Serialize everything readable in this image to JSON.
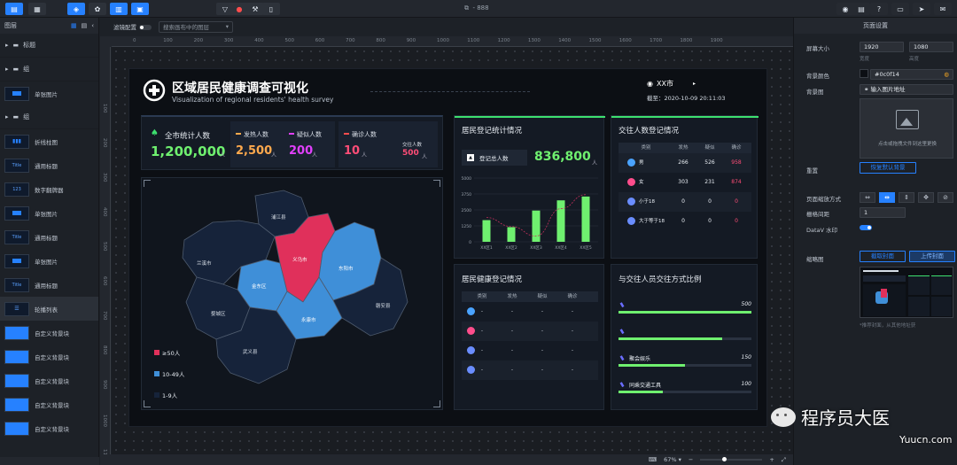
{
  "app": {
    "title": "- 888"
  },
  "left_panel": {
    "title": "图层",
    "groups": [
      {
        "label": "标题"
      },
      {
        "label": "组"
      },
      {
        "label": "组"
      }
    ],
    "layers": [
      {
        "label": "单张图片"
      },
      {
        "label": "折线柱图"
      },
      {
        "label": "通用标题"
      },
      {
        "label": "数字翻牌器"
      },
      {
        "label": "单张图片"
      },
      {
        "label": "通用标题"
      },
      {
        "label": "单张图片"
      },
      {
        "label": "通用标题"
      },
      {
        "label": "轮播列表"
      },
      {
        "label": "自定义背景块"
      },
      {
        "label": "自定义背景块"
      },
      {
        "label": "自定义背景块"
      },
      {
        "label": "自定义背景块"
      },
      {
        "label": "自定义背景块"
      }
    ]
  },
  "canvas_toolbar": {
    "filter_label": "滤镜配置",
    "search_placeholder": "搜索画布中的图层"
  },
  "ruler": {
    "h": [
      "0",
      "100",
      "200",
      "300",
      "400",
      "500",
      "600",
      "700",
      "800",
      "900",
      "1000",
      "1100",
      "1200",
      "1300",
      "1400",
      "1500",
      "1600",
      "1700",
      "1800",
      "1900"
    ],
    "v": [
      "100",
      "200",
      "300",
      "400",
      "500",
      "600",
      "700",
      "800",
      "900",
      "1000",
      "1100"
    ]
  },
  "zoom": "67%",
  "right_panel": {
    "title": "页面设置",
    "screen_size_label": "屏幕大小",
    "width": "1920",
    "height": "1080",
    "width_label": "宽度",
    "height_label": "高度",
    "bg_color_label": "背景颜色",
    "bg_color": "#0c0f14",
    "bg_image_label": "背景图",
    "bg_image_placeholder": "输入图片地址",
    "upload_hint": "点击或拖拽文件到这里更换",
    "reset_label": "重置",
    "reset_button": "恢复默认背景",
    "scale_label": "页面缩放方式",
    "grid_label": "栅格间距",
    "grid_value": "1",
    "watermark_label": "DataV 水印",
    "cover_label": "缩略图",
    "cover_btn1": "截取封面",
    "cover_btn2": "上传封面",
    "cover_hint": "*推荐封面，从其他地址获"
  },
  "dashboard": {
    "title": "区域居民健康调查可视化",
    "subtitle": "Visualization of regional residents' health survey",
    "city": "XX市",
    "time_label": "截至：",
    "time": "2020-10-09 20:11:03",
    "stats": {
      "total_label": "全市统计人数",
      "total_value": "1,200,000",
      "unit": "人",
      "fever_label": "发热人数",
      "fever_value": "2,500",
      "suspect_label": "疑似人数",
      "suspect_value": "200",
      "confirm_label": "确诊人数",
      "confirm_value": "10",
      "contact_label": "交往人数",
      "contact_value": "500"
    },
    "map_regions": [
      "浦江县",
      "兰溪市",
      "金东区",
      "义乌市",
      "东阳市",
      "婺城区",
      "永康市",
      "磐安县",
      "武义县"
    ],
    "legend": [
      "≥50人",
      "10-49人",
      "1-9人"
    ],
    "colors": {
      "high": "#e0305b",
      "mid": "#3f8fd8",
      "low": "#16233a",
      "green": "#6ff06f",
      "accent": "#ff4d77"
    },
    "reg_panel": {
      "title": "居民登记统计情况",
      "total_label": "登记总人数",
      "total_value": "836,800",
      "unit": "人"
    },
    "chart_data": {
      "type": "bar",
      "categories": [
        "XX区1",
        "XX区2",
        "XX区3",
        "XX区4",
        "XX区5"
      ],
      "values": [
        1700,
        1150,
        2450,
        3250,
        3550
      ],
      "ylim": [
        0,
        5000
      ],
      "yticks": [
        "5000",
        "3750",
        "2500",
        "1250",
        "0"
      ],
      "line": [
        1900,
        1200,
        450,
        2600,
        3700
      ],
      "series": [
        {
          "values": [
            1700,
            1150,
            2450,
            3250,
            3550
          ]
        }
      ]
    },
    "health_panel": {
      "title": "居民健康登记情况",
      "headers": [
        "类别",
        "发热",
        "疑似",
        "确诊"
      ],
      "rows": [
        [
          "-",
          "-",
          "-",
          "-"
        ],
        [
          "-",
          "-",
          "-",
          "-"
        ],
        [
          "-",
          "-",
          "-",
          "-"
        ],
        [
          "-",
          "-",
          "-",
          "-"
        ]
      ]
    },
    "contact_panel": {
      "title": "交往人数登记情况",
      "headers": [
        "类别",
        "发热",
        "疑似",
        "确诊"
      ],
      "rows": [
        {
          "label": "男",
          "a": "266",
          "b": "526",
          "c": "958"
        },
        {
          "label": "女",
          "a": "303",
          "b": "231",
          "c": "874"
        },
        {
          "label": "小于18",
          "a": "0",
          "b": "0",
          "c": "0"
        },
        {
          "label": "大于等于18",
          "a": "0",
          "b": "0",
          "c": "0"
        }
      ]
    },
    "method_panel": {
      "title": "与交往人员交往方式比例",
      "items": [
        {
          "label": "",
          "value": "500",
          "fraction": 1.0
        },
        {
          "label": "",
          "value": "",
          "fraction": 0.78
        },
        {
          "label": "聚会娱乐",
          "value": "150",
          "fraction": 0.5
        },
        {
          "label": "同乘交通工具",
          "value": "100",
          "fraction": 0.33
        }
      ]
    }
  },
  "watermark": {
    "brand": "程序员大医",
    "site": "Yuucn.com"
  }
}
